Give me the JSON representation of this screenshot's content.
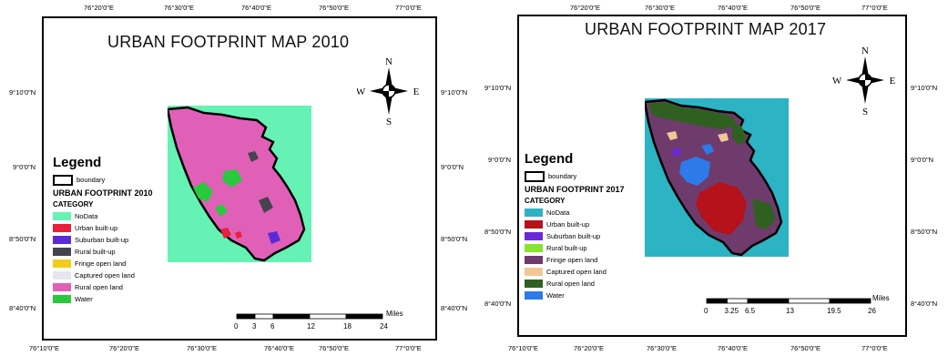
{
  "maps": [
    {
      "title": "URBAN FOOTPRINT MAP 2010",
      "top_lon_labels": [
        "76°20'0\"E",
        "76°30'0\"E",
        "76°40'0\"E",
        "76°50'0\"E",
        "77°0'0\"E"
      ],
      "bottom_lon_labels": [
        "76°10'0\"E",
        "76°20'0\"E",
        "76°30'0\"E",
        "76°40'0\"E",
        "76°50'0\"E",
        "77°0'0\"E"
      ],
      "left_lat_labels": [
        "9°10'0\"N",
        "9°0'0\"N",
        "8°50'0\"N",
        "8°40'0\"N"
      ],
      "right_lat_labels": [
        "9°10'0\"N",
        "9°0'0\"N",
        "8°50'0\"N",
        "8°40'0\"N"
      ],
      "compass": {
        "n": "N",
        "s": "S",
        "e": "E",
        "w": "W"
      },
      "legend": {
        "heading": "Legend",
        "boundary_label": "boundary",
        "subtitle": "URBAN FOOTPRINT 2010",
        "category_label": "CATEGORY",
        "items": [
          {
            "label": "NoData",
            "color": "#66f2b4"
          },
          {
            "label": "Urban built-up",
            "color": "#e8203a"
          },
          {
            "label": "Suburban built-up",
            "color": "#5a2ad6"
          },
          {
            "label": "Rural built-up",
            "color": "#45434f"
          },
          {
            "label": "Fringe open land",
            "color": "#f2cc18"
          },
          {
            "label": "Captured open land",
            "color": "#e6e6f0"
          },
          {
            "label": "Rural open land",
            "color": "#e060b8"
          },
          {
            "label": "Water",
            "color": "#28c93c"
          }
        ]
      },
      "scale": {
        "unit": "Miles",
        "ticks": [
          "0",
          "3",
          "6",
          "12",
          "18",
          "24"
        ],
        "tick_values": [
          0,
          3,
          6,
          12,
          18,
          24
        ]
      }
    },
    {
      "title": "URBAN FOOTPRINT MAP 2017",
      "top_lon_labels": [
        "76°20'0\"E",
        "76°30'0\"E",
        "76°40'0\"E",
        "76°50'0\"E",
        "77°0'0\"E"
      ],
      "bottom_lon_labels": [
        "76°10'0\"E",
        "76°20'0\"E",
        "76°30'0\"E",
        "76°40'0\"E",
        "76°50'0\"E",
        "77°0'0\"E"
      ],
      "left_lat_labels": [
        "9°10'0\"N",
        "9°0'0\"N",
        "8°50'0\"N",
        "8°40'0\"N"
      ],
      "right_lat_labels": [
        "9°10'0\"N",
        "9°0'0\"N",
        "8°50'0\"N",
        "8°40'0\"N"
      ],
      "compass": {
        "n": "N",
        "s": "S",
        "e": "E",
        "w": "W"
      },
      "legend": {
        "heading": "Legend",
        "boundary_label": "boundary",
        "subtitle": "URBAN FOOTPRINT 2017",
        "category_label": "CATEGORY",
        "items": [
          {
            "label": "NoData",
            "color": "#2cb3c4"
          },
          {
            "label": "Urban built-up",
            "color": "#b5121b"
          },
          {
            "label": "Suburban built-up",
            "color": "#6b28d9"
          },
          {
            "label": "Rural built-up",
            "color": "#86e62e"
          },
          {
            "label": "Fringe open land",
            "color": "#6e3b6c"
          },
          {
            "label": "Captured open land",
            "color": "#f0c896"
          },
          {
            "label": "Rural open land",
            "color": "#2f6020"
          },
          {
            "label": "Water",
            "color": "#2d7ae8"
          }
        ]
      },
      "scale": {
        "unit": "Miles",
        "ticks": [
          "0",
          "3.25",
          "6.5",
          "13",
          "19.5",
          "26"
        ],
        "tick_values": [
          0,
          3.25,
          6.5,
          13,
          19.5,
          26
        ]
      }
    }
  ]
}
